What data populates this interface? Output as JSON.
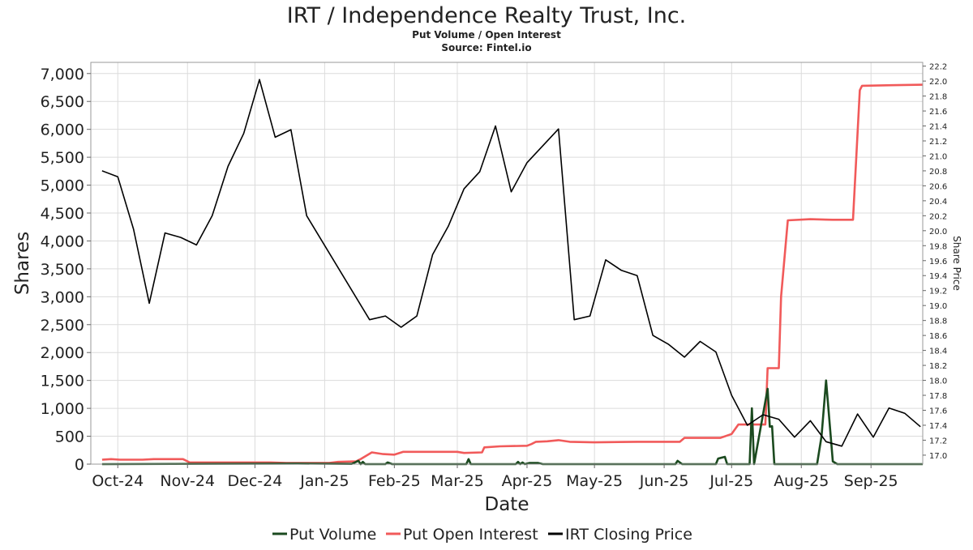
{
  "chart_data": {
    "type": "line",
    "title": "IRT / Independence Realty Trust, Inc.",
    "subtitle_1": "Put Volume / Open Interest",
    "subtitle_2": "Source: Fintel.io",
    "xlabel": "Date",
    "ylabel": "Shares",
    "y2label": "Share Price",
    "xlim": [
      "2024-09-19",
      "2025-09-24"
    ],
    "ylim": [
      0,
      7200
    ],
    "y2lim": [
      16.88,
      22.25
    ],
    "grid": true,
    "legend_position": "bottom-center",
    "y_ticks": [
      0,
      500,
      1000,
      1500,
      2000,
      2500,
      3000,
      3500,
      4000,
      4500,
      5000,
      5500,
      6000,
      6500,
      7000
    ],
    "y_tick_labels": [
      "0",
      "500",
      "1,000",
      "1,500",
      "2,000",
      "2,500",
      "3,000",
      "3,500",
      "4,000",
      "4,500",
      "5,000",
      "5,500",
      "6,000",
      "6,500",
      "7,000"
    ],
    "y2_ticks": [
      17.0,
      17.2,
      17.4,
      17.6,
      17.8,
      18.0,
      18.2,
      18.4,
      18.6,
      18.8,
      19.0,
      19.2,
      19.4,
      19.6,
      19.8,
      20.0,
      20.2,
      20.4,
      20.6,
      20.8,
      21.0,
      21.2,
      21.4,
      21.6,
      21.8,
      22.0,
      22.2
    ],
    "y2_tick_labels": [
      "17.0",
      "17.2",
      "17.4",
      "17.6",
      "17.8",
      "18.0",
      "18.2",
      "18.4",
      "18.6",
      "18.8",
      "19.0",
      "19.2",
      "19.4",
      "19.6",
      "19.8",
      "20.0",
      "20.2",
      "20.4",
      "20.6",
      "20.8",
      "21.0",
      "21.2",
      "21.4",
      "21.6",
      "21.8",
      "22.0",
      "22.2"
    ],
    "x_ticks": [
      {
        "label": "Oct-24",
        "date": "2024-10-01"
      },
      {
        "label": "Nov-24",
        "date": "2024-11-01"
      },
      {
        "label": "Dec-24",
        "date": "2024-12-01"
      },
      {
        "label": "Jan-25",
        "date": "2025-01-01"
      },
      {
        "label": "Feb-25",
        "date": "2025-02-01"
      },
      {
        "label": "Mar-25",
        "date": "2025-03-01"
      },
      {
        "label": "Apr-25",
        "date": "2025-04-01"
      },
      {
        "label": "May-25",
        "date": "2025-05-01"
      },
      {
        "label": "Jun-25",
        "date": "2025-06-01"
      },
      {
        "label": "Jul-25",
        "date": "2025-07-01"
      },
      {
        "label": "Aug-25",
        "date": "2025-08-01"
      },
      {
        "label": "Sep-25",
        "date": "2025-09-01"
      }
    ],
    "series": [
      {
        "name": "Put Volume",
        "axis": "left",
        "color": "#1b4a1f",
        "points": [
          [
            "2024-09-24",
            0
          ],
          [
            "2024-12-20",
            10
          ],
          [
            "2025-01-13",
            5
          ],
          [
            "2025-01-16",
            60
          ],
          [
            "2025-01-17",
            0
          ],
          [
            "2025-01-18",
            40
          ],
          [
            "2025-01-19",
            0
          ],
          [
            "2025-01-28",
            0
          ],
          [
            "2025-01-29",
            30
          ],
          [
            "2025-01-31",
            0
          ],
          [
            "2025-03-05",
            0
          ],
          [
            "2025-03-06",
            90
          ],
          [
            "2025-03-07",
            0
          ],
          [
            "2025-03-27",
            0
          ],
          [
            "2025-03-28",
            40
          ],
          [
            "2025-03-29",
            0
          ],
          [
            "2025-03-30",
            30
          ],
          [
            "2025-03-31",
            0
          ],
          [
            "2025-04-02",
            20
          ],
          [
            "2025-04-06",
            20
          ],
          [
            "2025-04-08",
            0
          ],
          [
            "2025-06-06",
            0
          ],
          [
            "2025-06-07",
            60
          ],
          [
            "2025-06-09",
            0
          ],
          [
            "2025-06-24",
            0
          ],
          [
            "2025-06-25",
            100
          ],
          [
            "2025-06-28",
            130
          ],
          [
            "2025-06-29",
            0
          ],
          [
            "2025-07-09",
            0
          ],
          [
            "2025-07-10",
            1000
          ],
          [
            "2025-07-11",
            0
          ],
          [
            "2025-07-17",
            1350
          ],
          [
            "2025-07-18",
            670
          ],
          [
            "2025-07-19",
            680
          ],
          [
            "2025-07-20",
            0
          ],
          [
            "2025-08-08",
            0
          ],
          [
            "2025-08-10",
            500
          ],
          [
            "2025-08-12",
            1500
          ],
          [
            "2025-08-15",
            50
          ],
          [
            "2025-08-17",
            0
          ],
          [
            "2025-09-24",
            0
          ]
        ]
      },
      {
        "name": "Put Open Interest",
        "axis": "left",
        "color": "#f15a5a",
        "points": [
          [
            "2024-09-24",
            80
          ],
          [
            "2024-09-28",
            90
          ],
          [
            "2024-10-02",
            80
          ],
          [
            "2024-10-12",
            80
          ],
          [
            "2024-10-17",
            90
          ],
          [
            "2024-10-30",
            90
          ],
          [
            "2024-11-02",
            30
          ],
          [
            "2024-12-08",
            30
          ],
          [
            "2024-12-15",
            20
          ],
          [
            "2025-01-03",
            20
          ],
          [
            "2025-01-07",
            40
          ],
          [
            "2025-01-15",
            50
          ],
          [
            "2025-01-17",
            90
          ],
          [
            "2025-01-22",
            210
          ],
          [
            "2025-01-27",
            180
          ],
          [
            "2025-02-01",
            170
          ],
          [
            "2025-02-05",
            220
          ],
          [
            "2025-03-01",
            220
          ],
          [
            "2025-03-04",
            200
          ],
          [
            "2025-03-12",
            210
          ],
          [
            "2025-03-13",
            300
          ],
          [
            "2025-03-20",
            320
          ],
          [
            "2025-04-01",
            330
          ],
          [
            "2025-04-03",
            360
          ],
          [
            "2025-04-05",
            400
          ],
          [
            "2025-04-10",
            410
          ],
          [
            "2025-04-15",
            430
          ],
          [
            "2025-04-20",
            400
          ],
          [
            "2025-05-01",
            390
          ],
          [
            "2025-05-20",
            400
          ],
          [
            "2025-06-08",
            400
          ],
          [
            "2025-06-10",
            470
          ],
          [
            "2025-06-26",
            470
          ],
          [
            "2025-07-01",
            540
          ],
          [
            "2025-07-04",
            710
          ],
          [
            "2025-07-16",
            710
          ],
          [
            "2025-07-17",
            1720
          ],
          [
            "2025-07-22",
            1720
          ],
          [
            "2025-07-23",
            3000
          ],
          [
            "2025-07-26",
            4370
          ],
          [
            "2025-08-05",
            4390
          ],
          [
            "2025-08-15",
            4380
          ],
          [
            "2025-08-24",
            4380
          ],
          [
            "2025-08-27",
            6700
          ],
          [
            "2025-08-28",
            6780
          ],
          [
            "2025-09-10",
            6790
          ],
          [
            "2025-09-24",
            6800
          ]
        ]
      },
      {
        "name": "IRT Closing Price",
        "axis": "right",
        "color": "#000000",
        "points": [
          [
            "2024-09-24",
            20.8
          ],
          [
            "2024-10-01",
            20.72
          ],
          [
            "2024-10-08",
            20.02
          ],
          [
            "2024-10-15",
            19.03
          ],
          [
            "2024-10-22",
            19.97
          ],
          [
            "2024-10-29",
            19.91
          ],
          [
            "2024-11-05",
            19.81
          ],
          [
            "2024-11-12",
            20.2
          ],
          [
            "2024-11-19",
            20.86
          ],
          [
            "2024-11-26",
            21.3
          ],
          [
            "2024-12-03",
            22.02
          ],
          [
            "2024-12-10",
            21.25
          ],
          [
            "2024-12-17",
            21.35
          ],
          [
            "2024-12-24",
            20.2
          ],
          [
            "2025-01-21",
            18.81
          ],
          [
            "2025-01-28",
            18.86
          ],
          [
            "2025-02-04",
            18.71
          ],
          [
            "2025-02-11",
            18.86
          ],
          [
            "2025-02-18",
            19.68
          ],
          [
            "2025-02-25",
            20.06
          ],
          [
            "2025-03-04",
            20.56
          ],
          [
            "2025-03-11",
            20.79
          ],
          [
            "2025-03-18",
            21.4
          ],
          [
            "2025-03-25",
            20.52
          ],
          [
            "2025-04-01",
            20.91
          ],
          [
            "2025-04-15",
            21.36
          ],
          [
            "2025-04-22",
            18.81
          ],
          [
            "2025-04-29",
            18.86
          ],
          [
            "2025-05-06",
            19.61
          ],
          [
            "2025-05-13",
            19.47
          ],
          [
            "2025-05-20",
            19.4
          ],
          [
            "2025-05-27",
            18.6
          ],
          [
            "2025-06-03",
            18.48
          ],
          [
            "2025-06-10",
            18.31
          ],
          [
            "2025-06-17",
            18.52
          ],
          [
            "2025-06-24",
            18.38
          ],
          [
            "2025-07-01",
            17.8
          ],
          [
            "2025-07-08",
            17.4
          ],
          [
            "2025-07-15",
            17.54
          ],
          [
            "2025-07-22",
            17.48
          ],
          [
            "2025-07-29",
            17.24
          ],
          [
            "2025-08-05",
            17.46
          ],
          [
            "2025-08-12",
            17.18
          ],
          [
            "2025-08-19",
            17.12
          ],
          [
            "2025-08-26",
            17.55
          ],
          [
            "2025-09-02",
            17.24
          ],
          [
            "2025-09-09",
            17.63
          ],
          [
            "2025-09-16",
            17.56
          ],
          [
            "2025-09-23",
            17.38
          ]
        ]
      }
    ],
    "legend": [
      "Put Volume",
      "Put Open Interest",
      "IRT Closing Price"
    ]
  }
}
